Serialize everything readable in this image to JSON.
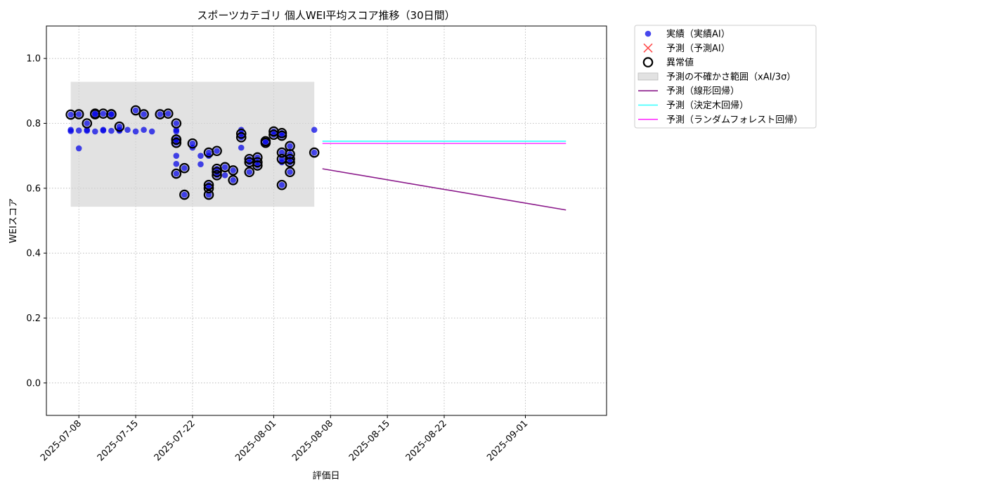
{
  "chart_data": {
    "type": "scatter",
    "title": "スポーツカテゴリ 個人WEI平均スコア推移（30日間）",
    "xlabel": "評価日",
    "ylabel": "WEIスコア",
    "xlim": [
      "2025-07-04",
      "2025-09-11"
    ],
    "ylim": [
      -0.1,
      1.1
    ],
    "yticks": [
      0.0,
      0.2,
      0.4,
      0.6,
      0.8,
      1.0
    ],
    "ytick_labels": [
      "0.0",
      "0.2",
      "0.4",
      "0.6",
      "0.8",
      "1.0"
    ],
    "xticks": [
      "2025-07-08",
      "2025-07-15",
      "2025-07-22",
      "2025-08-01",
      "2025-08-08",
      "2025-08-15",
      "2025-08-22",
      "2025-09-01"
    ],
    "grid": true,
    "legend_position": "outside-upper-right",
    "legend": [
      {
        "label": "実績（実績AI）",
        "marker": "circle",
        "color": "#0000e6"
      },
      {
        "label": "予測（予測AI）",
        "marker": "x",
        "color": "#ff4d4d"
      },
      {
        "label": "異常値",
        "marker": "ring",
        "color": "#000000"
      },
      {
        "label": "予測の不確かさ範囲（xAI/3σ）",
        "marker": "patch",
        "color": "#d3d3d3"
      },
      {
        "label": "予測（線形回帰）",
        "marker": "line",
        "color": "#8b1a8b"
      },
      {
        "label": "予測（決定木回帰）",
        "marker": "line",
        "color": "#33ffff"
      },
      {
        "label": "予測（ランダムフォレスト回帰）",
        "marker": "line",
        "color": "#ff33ff"
      }
    ],
    "uncertainty_band": {
      "x": [
        "2025-07-07",
        "2025-08-06"
      ],
      "y": [
        0.543,
        0.928
      ]
    },
    "actual": [
      [
        "2025-07-07",
        0.776
      ],
      [
        "2025-07-07",
        0.827
      ],
      [
        "2025-07-07",
        0.78
      ],
      [
        "2025-07-08",
        0.778
      ],
      [
        "2025-07-08",
        0.723
      ],
      [
        "2025-07-08",
        0.828
      ],
      [
        "2025-07-09",
        0.8
      ],
      [
        "2025-07-09",
        0.78
      ],
      [
        "2025-07-09",
        0.777
      ],
      [
        "2025-07-10",
        0.775
      ],
      [
        "2025-07-10",
        0.828
      ],
      [
        "2025-07-10",
        0.83
      ],
      [
        "2025-07-11",
        0.78
      ],
      [
        "2025-07-11",
        0.83
      ],
      [
        "2025-07-11",
        0.778
      ],
      [
        "2025-07-12",
        0.828
      ],
      [
        "2025-07-12",
        0.777
      ],
      [
        "2025-07-12",
        0.828
      ],
      [
        "2025-07-13",
        0.79
      ],
      [
        "2025-07-13",
        0.78
      ],
      [
        "2025-07-13",
        0.777
      ],
      [
        "2025-07-14",
        0.78
      ],
      [
        "2025-07-15",
        0.84
      ],
      [
        "2025-07-15",
        0.775
      ],
      [
        "2025-07-16",
        0.828
      ],
      [
        "2025-07-16",
        0.78
      ],
      [
        "2025-07-17",
        0.775
      ],
      [
        "2025-07-18",
        0.828
      ],
      [
        "2025-07-19",
        0.83
      ],
      [
        "2025-07-20",
        0.78
      ],
      [
        "2025-07-20",
        0.775
      ],
      [
        "2025-07-20",
        0.8
      ],
      [
        "2025-07-20",
        0.75
      ],
      [
        "2025-07-20",
        0.74
      ],
      [
        "2025-07-20",
        0.7
      ],
      [
        "2025-07-20",
        0.675
      ],
      [
        "2025-07-20",
        0.75
      ],
      [
        "2025-07-20",
        0.645
      ],
      [
        "2025-07-21",
        0.58
      ],
      [
        "2025-07-21",
        0.662
      ],
      [
        "2025-07-22",
        0.738
      ],
      [
        "2025-07-22",
        0.725
      ],
      [
        "2025-07-23",
        0.7
      ],
      [
        "2025-07-23",
        0.674
      ],
      [
        "2025-07-24",
        0.71
      ],
      [
        "2025-07-24",
        0.6
      ],
      [
        "2025-07-24",
        0.58
      ],
      [
        "2025-07-24",
        0.61
      ],
      [
        "2025-07-24",
        0.7
      ],
      [
        "2025-07-25",
        0.715
      ],
      [
        "2025-07-25",
        0.66
      ],
      [
        "2025-07-25",
        0.65
      ],
      [
        "2025-07-25",
        0.64
      ],
      [
        "2025-07-26",
        0.665
      ],
      [
        "2025-07-26",
        0.64
      ],
      [
        "2025-07-27",
        0.625
      ],
      [
        "2025-07-27",
        0.655
      ],
      [
        "2025-07-28",
        0.768
      ],
      [
        "2025-07-28",
        0.78
      ],
      [
        "2025-07-28",
        0.757
      ],
      [
        "2025-07-28",
        0.725
      ],
      [
        "2025-07-29",
        0.69
      ],
      [
        "2025-07-29",
        0.68
      ],
      [
        "2025-07-29",
        0.65
      ],
      [
        "2025-07-30",
        0.68
      ],
      [
        "2025-07-30",
        0.67
      ],
      [
        "2025-07-30",
        0.695
      ],
      [
        "2025-07-31",
        0.745
      ],
      [
        "2025-07-31",
        0.74
      ],
      [
        "2025-08-01",
        0.775
      ],
      [
        "2025-08-01",
        0.765
      ],
      [
        "2025-08-02",
        0.77
      ],
      [
        "2025-08-02",
        0.762
      ],
      [
        "2025-08-02",
        0.71
      ],
      [
        "2025-08-02",
        0.69
      ],
      [
        "2025-08-02",
        0.68
      ],
      [
        "2025-08-02",
        0.61
      ],
      [
        "2025-08-03",
        0.73
      ],
      [
        "2025-08-03",
        0.705
      ],
      [
        "2025-08-03",
        0.69
      ],
      [
        "2025-08-03",
        0.68
      ],
      [
        "2025-08-03",
        0.65
      ],
      [
        "2025-08-06",
        0.78
      ],
      [
        "2025-08-06",
        0.71
      ]
    ],
    "anomalies": [
      [
        "2025-07-07",
        0.827
      ],
      [
        "2025-07-08",
        0.828
      ],
      [
        "2025-07-09",
        0.8
      ],
      [
        "2025-07-10",
        0.828
      ],
      [
        "2025-07-10",
        0.83
      ],
      [
        "2025-07-11",
        0.83
      ],
      [
        "2025-07-12",
        0.828
      ],
      [
        "2025-07-12",
        0.828
      ],
      [
        "2025-07-13",
        0.79
      ],
      [
        "2025-07-15",
        0.84
      ],
      [
        "2025-07-16",
        0.828
      ],
      [
        "2025-07-18",
        0.828
      ],
      [
        "2025-07-19",
        0.83
      ],
      [
        "2025-07-20",
        0.8
      ],
      [
        "2025-07-20",
        0.75
      ],
      [
        "2025-07-20",
        0.74
      ],
      [
        "2025-07-20",
        0.75
      ],
      [
        "2025-07-20",
        0.645
      ],
      [
        "2025-07-21",
        0.58
      ],
      [
        "2025-07-21",
        0.662
      ],
      [
        "2025-07-22",
        0.738
      ],
      [
        "2025-07-24",
        0.71
      ],
      [
        "2025-07-24",
        0.6
      ],
      [
        "2025-07-24",
        0.58
      ],
      [
        "2025-07-24",
        0.61
      ],
      [
        "2025-07-25",
        0.715
      ],
      [
        "2025-07-25",
        0.66
      ],
      [
        "2025-07-25",
        0.65
      ],
      [
        "2025-07-25",
        0.64
      ],
      [
        "2025-07-26",
        0.665
      ],
      [
        "2025-07-27",
        0.625
      ],
      [
        "2025-07-27",
        0.655
      ],
      [
        "2025-07-28",
        0.768
      ],
      [
        "2025-07-28",
        0.757
      ],
      [
        "2025-07-29",
        0.69
      ],
      [
        "2025-07-29",
        0.68
      ],
      [
        "2025-07-29",
        0.65
      ],
      [
        "2025-07-30",
        0.68
      ],
      [
        "2025-07-30",
        0.67
      ],
      [
        "2025-07-30",
        0.695
      ],
      [
        "2025-07-31",
        0.745
      ],
      [
        "2025-07-31",
        0.74
      ],
      [
        "2025-08-01",
        0.775
      ],
      [
        "2025-08-01",
        0.765
      ],
      [
        "2025-08-02",
        0.77
      ],
      [
        "2025-08-02",
        0.762
      ],
      [
        "2025-08-02",
        0.71
      ],
      [
        "2025-08-02",
        0.69
      ],
      [
        "2025-08-02",
        0.61
      ],
      [
        "2025-08-03",
        0.73
      ],
      [
        "2025-08-03",
        0.705
      ],
      [
        "2025-08-03",
        0.69
      ],
      [
        "2025-08-03",
        0.68
      ],
      [
        "2025-08-03",
        0.65
      ],
      [
        "2025-08-06",
        0.71
      ]
    ],
    "forecast_lines": [
      {
        "name": "予測（線形回帰）",
        "color": "#8b1a8b",
        "x": [
          "2025-08-07",
          "2025-09-06"
        ],
        "y": [
          0.66,
          0.533
        ]
      },
      {
        "name": "予測（決定木回帰）",
        "color": "#33ffff",
        "x": [
          "2025-08-07",
          "2025-09-06"
        ],
        "y": [
          0.745,
          0.745
        ]
      },
      {
        "name": "予測（ランダムフォレスト回帰）",
        "color": "#ff33ff",
        "x": [
          "2025-08-07",
          "2025-09-06"
        ],
        "y": [
          0.738,
          0.738
        ]
      }
    ]
  }
}
